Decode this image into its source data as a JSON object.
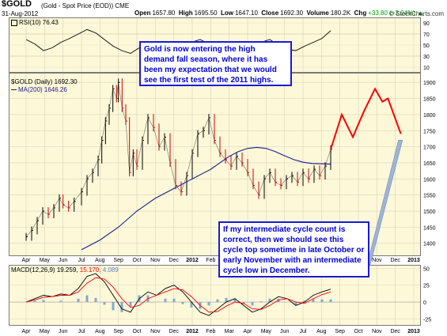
{
  "header": {
    "symbol": "$GOLD",
    "name": "(Gold - Spot Price (EOD))",
    "exchange": "CME",
    "date": "31-Aug-2012",
    "watermark": "© StockCharts.com"
  },
  "quote": {
    "open_label": "Open",
    "open": "1657.80",
    "high_label": "High",
    "high": "1695.50",
    "low_label": "Low",
    "low": "1647.10",
    "close_label": "Close",
    "close": "1692.30",
    "volume_label": "Volume",
    "volume": "180.2K",
    "chg_label": "Chg",
    "chg": "+33.80 (+2.04%)",
    "chg_arrow": "▲"
  },
  "callouts": {
    "top": "Gold is now entering the high demand fall season, where it has been my expectation that we would see the first test of the 2011 highs.",
    "bottom": "If my intermediate cycle count is correct, then we should see this cycle top sometime in late October or early November with an intermediate cycle low in December."
  },
  "colors": {
    "price_up": "#000000",
    "price_down": "#d40000",
    "ma": "#1c1c8c",
    "projection": "#ff0000",
    "macd": "#000000",
    "signal": "#ff0000",
    "histogram": "#7ea9d6",
    "rsi": "#000000",
    "callout_text": "#0000d8",
    "panel_bg": "#fdf8d8"
  },
  "chart_data": [
    {
      "type": "line",
      "title": "RSI(10) 76.43",
      "legend": "RSI(10) 76.43",
      "ylim": [
        0,
        100
      ],
      "y_ticks": [
        10,
        30,
        50,
        70,
        90
      ],
      "values": [
        60,
        52,
        40,
        45,
        55,
        62,
        70,
        78,
        72,
        60,
        48,
        40,
        35,
        45,
        55,
        48,
        42,
        38,
        45,
        55,
        60,
        52,
        45,
        50,
        40,
        35,
        45,
        55,
        60,
        50,
        42,
        40,
        48,
        55,
        62,
        76
      ]
    },
    {
      "type": "line",
      "title": "$GOLD (Daily) 1692.30",
      "legend_price": "$GOLD (Daily) 1692.30",
      "legend_ma": "MA(200) 1646.26",
      "ylim": [
        1360,
        1930
      ],
      "y_ticks": [
        1400,
        1450,
        1500,
        1550,
        1600,
        1650,
        1700,
        1750,
        1800,
        1850,
        1900
      ],
      "x_ticks": [
        "Apr",
        "May",
        "Jun",
        "Jul",
        "Aug",
        "Sep",
        "Oct",
        "Nov",
        "Dec",
        "2012",
        "Feb",
        "Mar",
        "Apr",
        "May",
        "Jun",
        "Jul",
        "Aug",
        "Sep",
        "Oct",
        "Nov",
        "Dec",
        "2013"
      ],
      "price_series": {
        "name": "$GOLD (Daily)",
        "t": [
          0,
          0.3,
          0.6,
          0.9,
          1.2,
          1.5,
          1.8,
          2.0,
          2.3,
          2.6,
          3.0,
          3.3,
          3.6,
          3.9,
          4.1,
          4.3,
          4.5,
          4.7,
          4.9,
          5.0,
          5.2,
          5.4,
          5.6,
          5.8,
          6.0,
          6.3,
          6.6,
          6.9,
          7.2,
          7.5,
          7.8,
          8.1,
          8.4,
          8.7,
          9.0,
          9.3,
          9.6,
          9.9,
          10.2,
          10.5,
          10.8,
          11.1,
          11.4,
          11.7,
          12.0,
          12.3,
          12.6,
          12.9,
          13.2,
          13.5,
          13.8,
          14.1,
          14.4,
          14.7,
          15.0,
          15.3,
          15.6,
          15.9,
          16.2,
          16.5
        ],
        "y": [
          1420,
          1440,
          1470,
          1500,
          1490,
          1510,
          1540,
          1520,
          1510,
          1530,
          1560,
          1600,
          1620,
          1660,
          1720,
          1780,
          1820,
          1880,
          1850,
          1900,
          1820,
          1780,
          1620,
          1680,
          1640,
          1720,
          1790,
          1760,
          1700,
          1730,
          1650,
          1580,
          1560,
          1610,
          1680,
          1740,
          1750,
          1790,
          1720,
          1680,
          1660,
          1640,
          1670,
          1650,
          1620,
          1580,
          1550,
          1600,
          1620,
          1590,
          1580,
          1600,
          1610,
          1590,
          1620,
          1600,
          1630,
          1610,
          1640,
          1692
        ]
      },
      "ma_series": {
        "name": "MA(200)",
        "t": [
          3.0,
          4.0,
          5.0,
          6.0,
          7.0,
          8.0,
          9.0,
          10.0,
          10.5,
          11.0,
          11.5,
          12.0,
          12.5,
          13.0,
          13.5,
          14.0,
          14.5,
          15.0,
          15.5,
          16.0,
          16.5
        ],
        "y": [
          1380,
          1410,
          1450,
          1500,
          1540,
          1570,
          1600,
          1630,
          1650,
          1670,
          1685,
          1695,
          1698,
          1695,
          1685,
          1672,
          1660,
          1652,
          1648,
          1647,
          1646
        ]
      },
      "projection_series": {
        "name": "projection",
        "t": [
          16.5,
          17.1,
          17.7,
          18.3,
          18.9,
          19.3,
          19.6,
          20.3
        ],
        "y": [
          1692,
          1800,
          1730,
          1810,
          1880,
          1840,
          1850,
          1740
        ]
      }
    },
    {
      "type": "line",
      "title": "MACD(12,26,9) 19.259, 15.170, 4.089",
      "legend_label": "MACD(12,26,9)",
      "legend_macd": "19.259,",
      "legend_signal": "15.170,",
      "legend_hist": "4.089",
      "ylim": [
        -35,
        55
      ],
      "y_ticks": [
        50,
        25,
        0,
        -25
      ],
      "x_ticks": [
        "Apr",
        "May",
        "Jun",
        "Jul",
        "Aug",
        "Sep",
        "Oct",
        "Nov",
        "Dec",
        "2012",
        "Feb",
        "Mar",
        "Apr",
        "May",
        "Jun",
        "Jul",
        "Aug",
        "Sep",
        "Oct",
        "Nov",
        "Dec",
        "2013"
      ],
      "macd": [
        0,
        5,
        10,
        8,
        12,
        10,
        20,
        38,
        42,
        30,
        10,
        -10,
        -15,
        5,
        15,
        10,
        20,
        25,
        15,
        0,
        -15,
        -20,
        -10,
        0,
        5,
        -5,
        -15,
        -10,
        0,
        8,
        5,
        -5,
        0,
        10,
        15,
        19
      ],
      "signal": [
        0,
        3,
        7,
        8,
        10,
        10,
        15,
        28,
        36,
        34,
        22,
        5,
        -8,
        -5,
        5,
        10,
        15,
        20,
        18,
        8,
        -5,
        -15,
        -14,
        -6,
        0,
        -2,
        -10,
        -11,
        -5,
        3,
        5,
        0,
        -2,
        5,
        11,
        15
      ],
      "histogram": [
        0,
        2,
        3,
        0,
        2,
        0,
        5,
        10,
        6,
        -4,
        -12,
        -15,
        -7,
        10,
        10,
        0,
        5,
        5,
        -3,
        -8,
        -10,
        -5,
        4,
        6,
        5,
        -3,
        -5,
        1,
        5,
        5,
        0,
        -5,
        2,
        5,
        4,
        4
      ]
    }
  ]
}
